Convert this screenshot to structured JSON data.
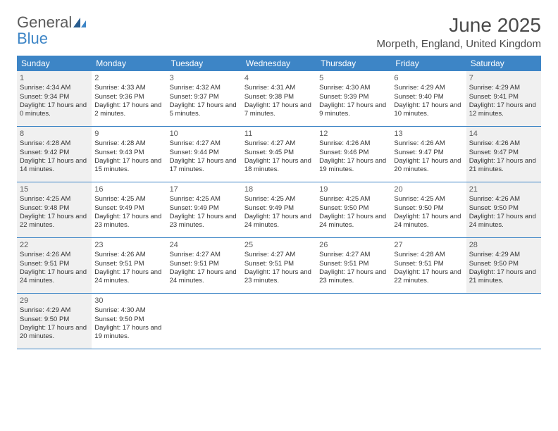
{
  "logo": {
    "general": "General",
    "blue": "Blue"
  },
  "title": "June 2025",
  "location": "Morpeth, England, United Kingdom",
  "colors": {
    "header_bg": "#3d85c6",
    "shade_bg": "#f0f0f0",
    "text": "#333333",
    "title_text": "#4a4a4a"
  },
  "dow": [
    "Sunday",
    "Monday",
    "Tuesday",
    "Wednesday",
    "Thursday",
    "Friday",
    "Saturday"
  ],
  "weeks": [
    [
      {
        "n": "1",
        "shade": true,
        "sr": "Sunrise: 4:34 AM",
        "ss": "Sunset: 9:34 PM",
        "dl": "Daylight: 17 hours and 0 minutes."
      },
      {
        "n": "2",
        "shade": false,
        "sr": "Sunrise: 4:33 AM",
        "ss": "Sunset: 9:36 PM",
        "dl": "Daylight: 17 hours and 2 minutes."
      },
      {
        "n": "3",
        "shade": false,
        "sr": "Sunrise: 4:32 AM",
        "ss": "Sunset: 9:37 PM",
        "dl": "Daylight: 17 hours and 5 minutes."
      },
      {
        "n": "4",
        "shade": false,
        "sr": "Sunrise: 4:31 AM",
        "ss": "Sunset: 9:38 PM",
        "dl": "Daylight: 17 hours and 7 minutes."
      },
      {
        "n": "5",
        "shade": false,
        "sr": "Sunrise: 4:30 AM",
        "ss": "Sunset: 9:39 PM",
        "dl": "Daylight: 17 hours and 9 minutes."
      },
      {
        "n": "6",
        "shade": false,
        "sr": "Sunrise: 4:29 AM",
        "ss": "Sunset: 9:40 PM",
        "dl": "Daylight: 17 hours and 10 minutes."
      },
      {
        "n": "7",
        "shade": true,
        "sr": "Sunrise: 4:29 AM",
        "ss": "Sunset: 9:41 PM",
        "dl": "Daylight: 17 hours and 12 minutes."
      }
    ],
    [
      {
        "n": "8",
        "shade": true,
        "sr": "Sunrise: 4:28 AM",
        "ss": "Sunset: 9:42 PM",
        "dl": "Daylight: 17 hours and 14 minutes."
      },
      {
        "n": "9",
        "shade": false,
        "sr": "Sunrise: 4:28 AM",
        "ss": "Sunset: 9:43 PM",
        "dl": "Daylight: 17 hours and 15 minutes."
      },
      {
        "n": "10",
        "shade": false,
        "sr": "Sunrise: 4:27 AM",
        "ss": "Sunset: 9:44 PM",
        "dl": "Daylight: 17 hours and 17 minutes."
      },
      {
        "n": "11",
        "shade": false,
        "sr": "Sunrise: 4:27 AM",
        "ss": "Sunset: 9:45 PM",
        "dl": "Daylight: 17 hours and 18 minutes."
      },
      {
        "n": "12",
        "shade": false,
        "sr": "Sunrise: 4:26 AM",
        "ss": "Sunset: 9:46 PM",
        "dl": "Daylight: 17 hours and 19 minutes."
      },
      {
        "n": "13",
        "shade": false,
        "sr": "Sunrise: 4:26 AM",
        "ss": "Sunset: 9:47 PM",
        "dl": "Daylight: 17 hours and 20 minutes."
      },
      {
        "n": "14",
        "shade": true,
        "sr": "Sunrise: 4:26 AM",
        "ss": "Sunset: 9:47 PM",
        "dl": "Daylight: 17 hours and 21 minutes."
      }
    ],
    [
      {
        "n": "15",
        "shade": true,
        "sr": "Sunrise: 4:25 AM",
        "ss": "Sunset: 9:48 PM",
        "dl": "Daylight: 17 hours and 22 minutes."
      },
      {
        "n": "16",
        "shade": false,
        "sr": "Sunrise: 4:25 AM",
        "ss": "Sunset: 9:49 PM",
        "dl": "Daylight: 17 hours and 23 minutes."
      },
      {
        "n": "17",
        "shade": false,
        "sr": "Sunrise: 4:25 AM",
        "ss": "Sunset: 9:49 PM",
        "dl": "Daylight: 17 hours and 23 minutes."
      },
      {
        "n": "18",
        "shade": false,
        "sr": "Sunrise: 4:25 AM",
        "ss": "Sunset: 9:49 PM",
        "dl": "Daylight: 17 hours and 24 minutes."
      },
      {
        "n": "19",
        "shade": false,
        "sr": "Sunrise: 4:25 AM",
        "ss": "Sunset: 9:50 PM",
        "dl": "Daylight: 17 hours and 24 minutes."
      },
      {
        "n": "20",
        "shade": false,
        "sr": "Sunrise: 4:25 AM",
        "ss": "Sunset: 9:50 PM",
        "dl": "Daylight: 17 hours and 24 minutes."
      },
      {
        "n": "21",
        "shade": true,
        "sr": "Sunrise: 4:26 AM",
        "ss": "Sunset: 9:50 PM",
        "dl": "Daylight: 17 hours and 24 minutes."
      }
    ],
    [
      {
        "n": "22",
        "shade": true,
        "sr": "Sunrise: 4:26 AM",
        "ss": "Sunset: 9:51 PM",
        "dl": "Daylight: 17 hours and 24 minutes."
      },
      {
        "n": "23",
        "shade": false,
        "sr": "Sunrise: 4:26 AM",
        "ss": "Sunset: 9:51 PM",
        "dl": "Daylight: 17 hours and 24 minutes."
      },
      {
        "n": "24",
        "shade": false,
        "sr": "Sunrise: 4:27 AM",
        "ss": "Sunset: 9:51 PM",
        "dl": "Daylight: 17 hours and 24 minutes."
      },
      {
        "n": "25",
        "shade": false,
        "sr": "Sunrise: 4:27 AM",
        "ss": "Sunset: 9:51 PM",
        "dl": "Daylight: 17 hours and 23 minutes."
      },
      {
        "n": "26",
        "shade": false,
        "sr": "Sunrise: 4:27 AM",
        "ss": "Sunset: 9:51 PM",
        "dl": "Daylight: 17 hours and 23 minutes."
      },
      {
        "n": "27",
        "shade": false,
        "sr": "Sunrise: 4:28 AM",
        "ss": "Sunset: 9:51 PM",
        "dl": "Daylight: 17 hours and 22 minutes."
      },
      {
        "n": "28",
        "shade": true,
        "sr": "Sunrise: 4:29 AM",
        "ss": "Sunset: 9:50 PM",
        "dl": "Daylight: 17 hours and 21 minutes."
      }
    ],
    [
      {
        "n": "29",
        "shade": true,
        "sr": "Sunrise: 4:29 AM",
        "ss": "Sunset: 9:50 PM",
        "dl": "Daylight: 17 hours and 20 minutes."
      },
      {
        "n": "30",
        "shade": false,
        "sr": "Sunrise: 4:30 AM",
        "ss": "Sunset: 9:50 PM",
        "dl": "Daylight: 17 hours and 19 minutes."
      },
      {
        "empty": true
      },
      {
        "empty": true
      },
      {
        "empty": true
      },
      {
        "empty": true
      },
      {
        "empty": true
      }
    ]
  ]
}
